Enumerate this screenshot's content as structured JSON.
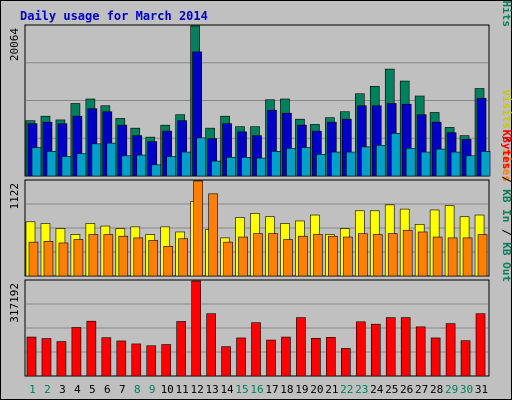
{
  "chart_data": {
    "type": "bar",
    "title": "Daily usage for March 2014",
    "days": [
      1,
      2,
      3,
      4,
      5,
      6,
      7,
      8,
      9,
      10,
      11,
      12,
      13,
      14,
      15,
      16,
      17,
      18,
      19,
      20,
      21,
      22,
      23,
      24,
      25,
      26,
      27,
      28,
      29,
      30,
      31
    ],
    "weekend_days": [
      1,
      2,
      8,
      9,
      15,
      16,
      22,
      23,
      29,
      30
    ],
    "panels": [
      {
        "name": "traffic",
        "max_label": "20064",
        "ymax": 20064,
        "legend": [
          {
            "text": "Pages",
            "color": "#00a0c8"
          },
          {
            "text": " / ",
            "color": "#000000"
          },
          {
            "text": "Files",
            "color": "#0000c8"
          },
          {
            "text": " / ",
            "color": "#000000"
          },
          {
            "text": "Hits",
            "color": "#00805c"
          }
        ],
        "series": [
          {
            "name": "Hits",
            "color": "#00805c",
            "values": [
              7400,
              8000,
              7500,
              9700,
              10300,
              9400,
              7700,
              6400,
              5200,
              6800,
              8200,
              20064,
              6400,
              8000,
              6600,
              6600,
              10200,
              10300,
              7600,
              6900,
              7800,
              8600,
              11000,
              12000,
              14300,
              12700,
              10700,
              8500,
              6500,
              5400,
              11700
            ]
          },
          {
            "name": "Files",
            "color": "#0000c8",
            "values": [
              7000,
              7200,
              7000,
              8000,
              9000,
              8600,
              6800,
              5400,
              4600,
              6000,
              7400,
              16600,
              5000,
              7000,
              5900,
              5400,
              8800,
              8400,
              6800,
              6000,
              7200,
              7600,
              9400,
              9400,
              9700,
              9600,
              8200,
              7200,
              5800,
              4900,
              10400
            ]
          },
          {
            "name": "Pages",
            "color": "#00a0c8",
            "values": [
              3800,
              3300,
              2600,
              3000,
              4300,
              4400,
              2700,
              2800,
              1500,
              2600,
              3200,
              5100,
              2000,
              2500,
              2500,
              2400,
              3300,
              3700,
              3800,
              2900,
              3200,
              3200,
              3900,
              4100,
              5700,
              3700,
              3200,
              3600,
              3200,
              2700,
              3300
            ]
          }
        ]
      },
      {
        "name": "visits",
        "max_label": "1122",
        "ymax": 1122,
        "legend": [
          {
            "text": "Visits",
            "color": "#c8c800"
          },
          {
            "text": " / ",
            "color": "#000000"
          },
          {
            "text": "Sites",
            "color": "#ff8000"
          }
        ],
        "series": [
          {
            "name": "Visits",
            "color": "#ffff00",
            "values": [
              640,
              620,
              560,
              490,
              620,
              590,
              560,
              580,
              490,
              580,
              520,
              880,
              550,
              450,
              690,
              740,
              700,
              620,
              650,
              720,
              490,
              560,
              770,
              770,
              840,
              790,
              610,
              780,
              830,
              700,
              720
            ]
          },
          {
            "name": "Sites",
            "color": "#ff8000",
            "values": [
              400,
              410,
              390,
              430,
              490,
              490,
              470,
              450,
              420,
              350,
              440,
              1122,
              970,
              400,
              460,
              500,
              500,
              430,
              470,
              490,
              470,
              460,
              500,
              490,
              500,
              540,
              520,
              460,
              450,
              450,
              490
            ]
          }
        ]
      },
      {
        "name": "kbytes",
        "max_label": "317192",
        "ymax": 317192,
        "legend": [
          {
            "text": "KBytes",
            "color": "#ff0000"
          },
          {
            "text": " / ",
            "color": "#000000"
          },
          {
            "text": "KB In",
            "color": "#00805c"
          },
          {
            "text": " / ",
            "color": "#000000"
          },
          {
            "text": "KB Out",
            "color": "#00805c"
          }
        ],
        "series": [
          {
            "name": "KBytes",
            "color": "#ff0000",
            "values": [
              130000,
              125000,
              115000,
              162000,
              183000,
              128000,
              117000,
              107000,
              101000,
              105000,
              182000,
              317000,
              208000,
              98000,
              127000,
              178000,
              120000,
              130000,
              195000,
              126000,
              129000,
              92000,
              181000,
              173000,
              195000,
              195000,
              164000,
              127000,
              175000,
              118000,
              208000
            ]
          }
        ]
      }
    ]
  }
}
